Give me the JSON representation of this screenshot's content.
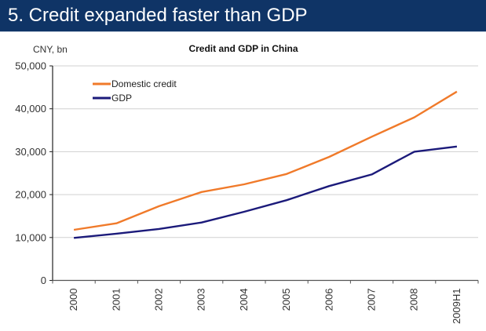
{
  "header": {
    "title": "5. Credit expanded faster than GDP"
  },
  "colors": {
    "banner": "#0f3466",
    "credit": "#f07a2a",
    "gdp": "#1b1a7a",
    "grid": "#d0d0d0",
    "axis": "#222222"
  },
  "chart_data": {
    "type": "line",
    "title": "Credit and GDP in China",
    "ylabel": "CNY, bn",
    "xlabel": "",
    "categories": [
      "2000",
      "2001",
      "2002",
      "2003",
      "2004",
      "2005",
      "2006",
      "2007",
      "2008",
      "2009H1"
    ],
    "series": [
      {
        "name": "Domestic credit",
        "color": "#f07a2a",
        "values": [
          11800,
          13300,
          17300,
          20600,
          22400,
          24800,
          28800,
          33500,
          38000,
          44000
        ]
      },
      {
        "name": "GDP",
        "color": "#1b1a7a",
        "values": [
          9900,
          10900,
          12000,
          13500,
          16000,
          18700,
          22000,
          24700,
          30000,
          31200
        ]
      }
    ],
    "ylim": [
      0,
      50000
    ],
    "yticks": [
      0,
      10000,
      20000,
      30000,
      40000,
      50000
    ],
    "ytick_labels": [
      "0",
      "10,000",
      "20,000",
      "30,000",
      "40,000",
      "50,000"
    ],
    "grid": true,
    "legend_position": "top-left"
  }
}
